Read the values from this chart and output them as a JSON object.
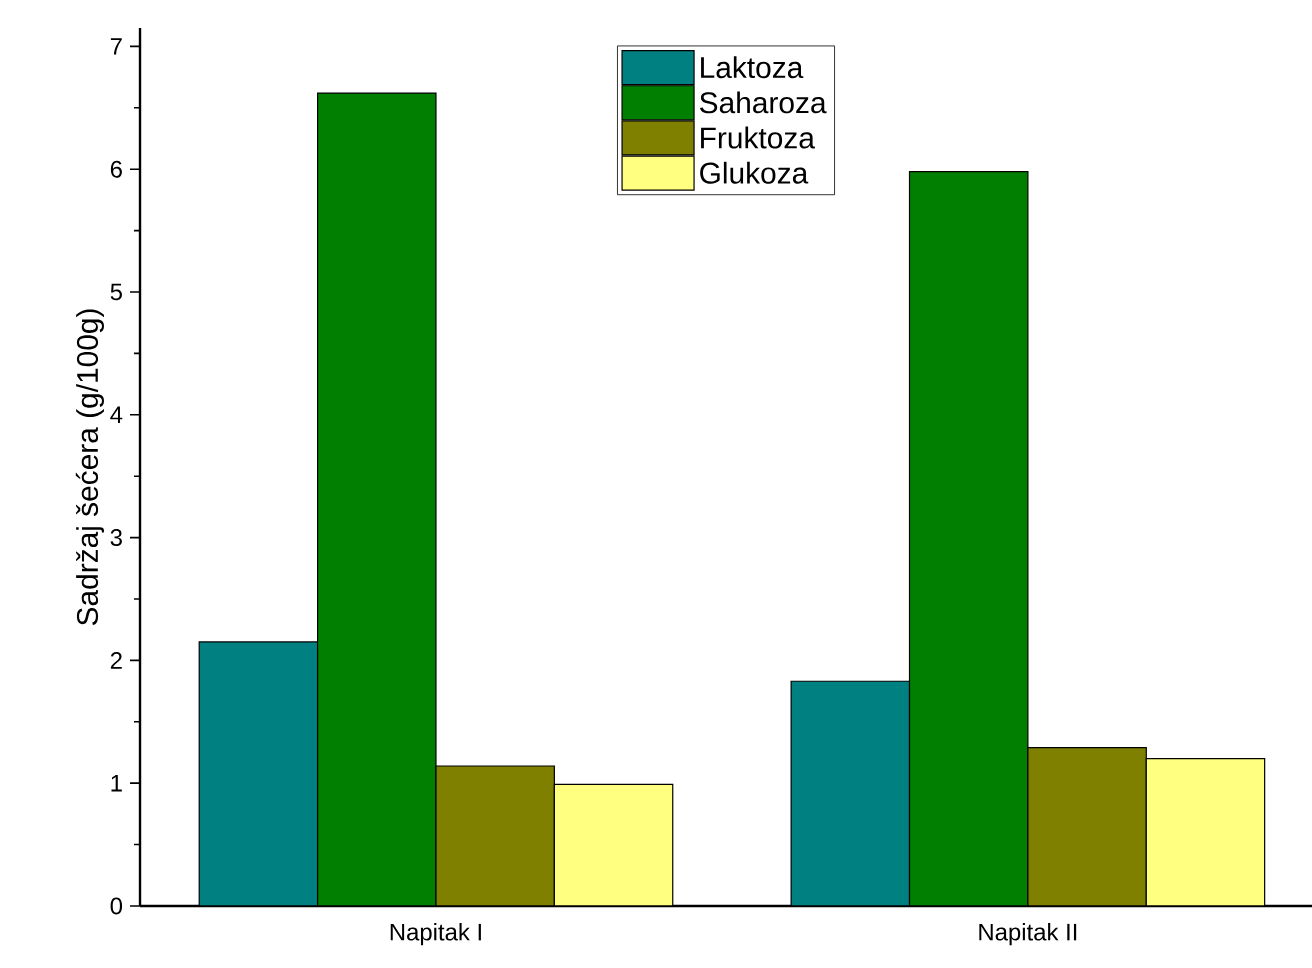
{
  "chart_data": {
    "type": "bar",
    "ylabel": "Sadržaj šećera (g/100g)",
    "categories": [
      "Napitak I",
      "Napitak II"
    ],
    "series": [
      {
        "name": "Laktoza",
        "color": "#008080",
        "values": [
          2.15,
          1.83
        ]
      },
      {
        "name": "Saharoza",
        "color": "#007f00",
        "values": [
          6.62,
          5.98
        ]
      },
      {
        "name": "Fruktoza",
        "color": "#7f7f00",
        "values": [
          1.14,
          1.29
        ]
      },
      {
        "name": "Glukoza",
        "color": "#ffff80",
        "values": [
          0.99,
          1.2
        ]
      }
    ],
    "ylim": [
      0,
      7.15
    ],
    "yticks": [
      0,
      1,
      2,
      3,
      4,
      5,
      6,
      7
    ],
    "grid": false,
    "legend": "top"
  }
}
